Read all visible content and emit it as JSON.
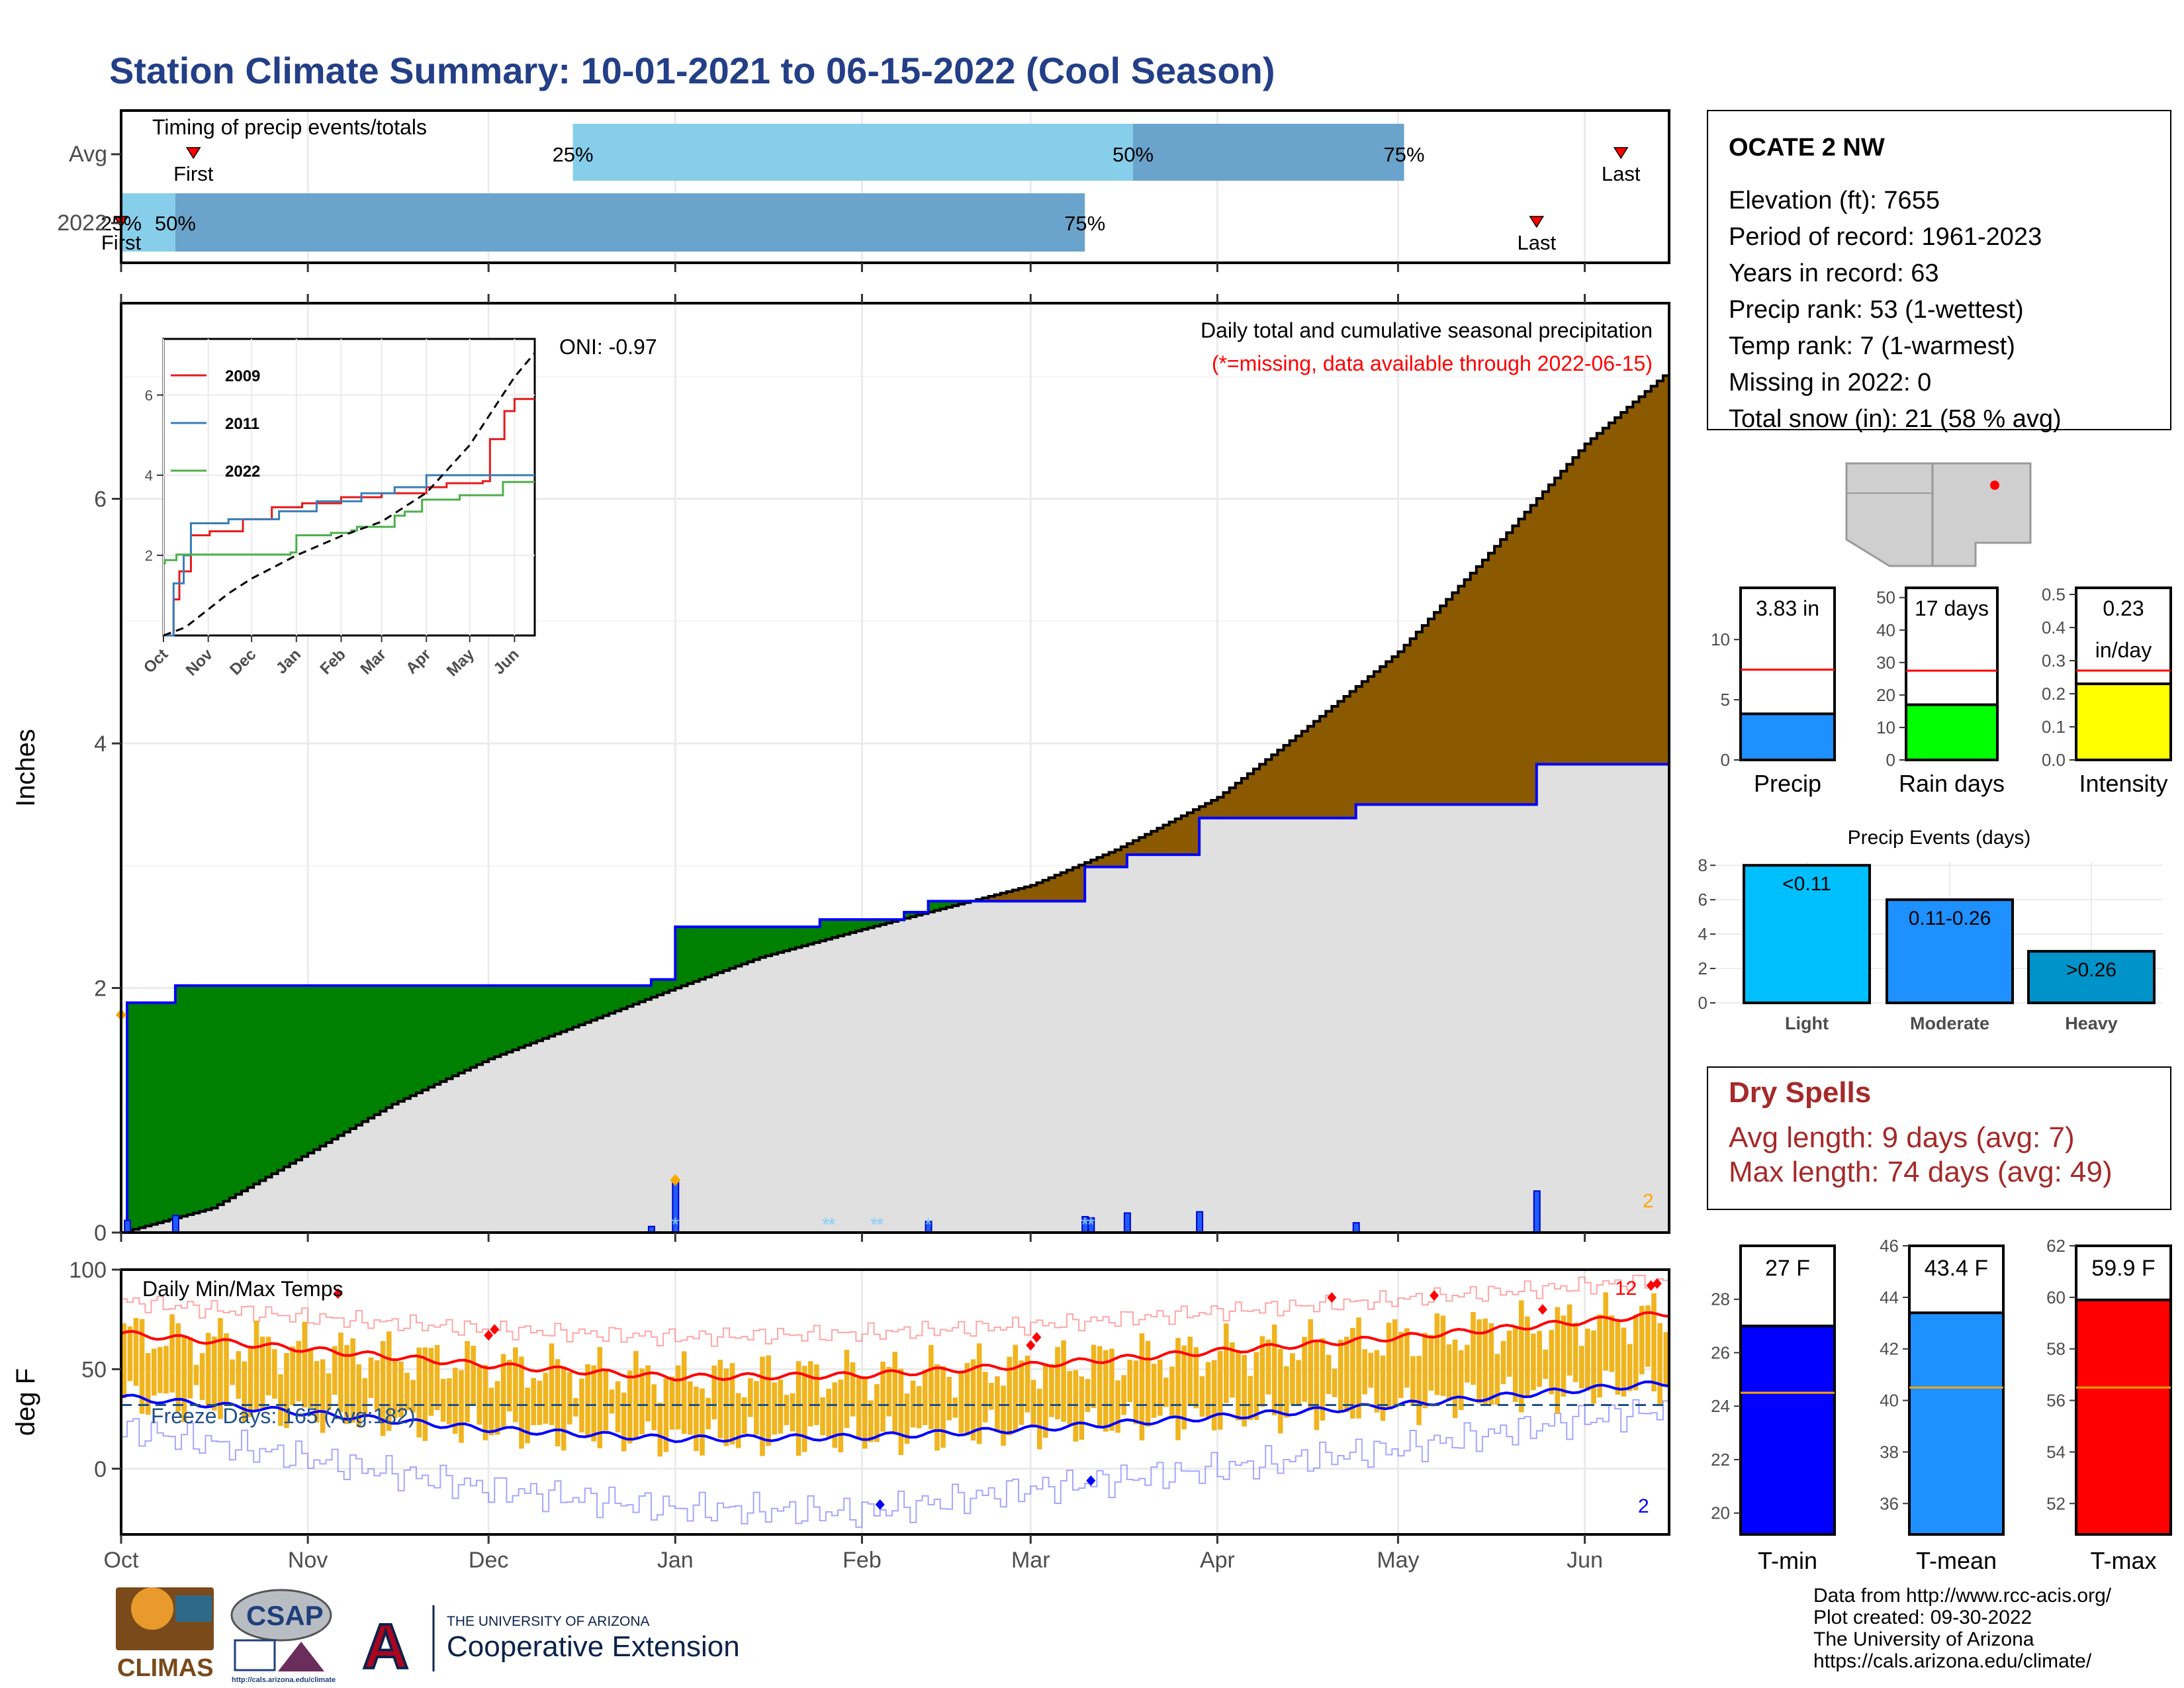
{
  "title": "Station Climate Summary: 10-01-2021 to 06-15-2022 (Cool Season)",
  "colors": {
    "title": "#233f87",
    "wet_fill": "#008000",
    "dry_fill": "#8b5a00",
    "avg_fill": "#e0e0e0",
    "precip_light": "#00bfff",
    "precip_moderate": "#1e90ff",
    "precip_heavy": "#0093c9",
    "rain_days": "#00ff00",
    "intensity": "#ffff00",
    "tmin": "#0000ff",
    "tmean": "#1e90ff",
    "tmax": "#ff0000",
    "temp_bar": "#f0b41e",
    "dry_spell_text": "#a52a2a",
    "timing_light": "#87ceeb",
    "timing_dark": "#6aa3cc"
  },
  "timing": {
    "title": "Timing of precip events/totals",
    "row_labels": [
      "Avg",
      "2022"
    ],
    "avg_labels": [
      "First",
      "25%",
      "50%",
      "75%",
      "Last"
    ],
    "y2022_labels": [
      "First",
      "25%",
      "50%",
      "75%",
      "Last"
    ],
    "chart_data": {
      "type": "bar",
      "categories": [
        "Avg",
        "2022"
      ],
      "series": [
        {
          "name": "Avg",
          "first": "2021-10-13",
          "p25": "2021-12-15",
          "p50": "2022-03-18",
          "p75": "2022-05-02",
          "last": "2022-06-07"
        },
        {
          "name": "2022",
          "first": "2021-10-01",
          "p25": "2021-10-01",
          "p50": "2021-10-10",
          "p75": "2022-03-10",
          "last": "2022-05-24"
        }
      ]
    }
  },
  "main": {
    "ylabel": "Inches",
    "header_line1": "Daily total and cumulative seasonal precipitation",
    "header_line2": "(*=missing, data available through 2022-06-15)",
    "oni": "ONI: -0.97",
    "corner_count": "2",
    "yticks": [
      "0",
      "2",
      "4",
      "6"
    ],
    "months": [
      "Oct",
      "Nov",
      "Dec",
      "Jan",
      "Feb",
      "Mar",
      "Apr",
      "May",
      "Jun"
    ],
    "chart_data": {
      "type": "area",
      "x_start": "2021-10-01",
      "x_end": "2022-06-15",
      "ylim": [
        0,
        7.6
      ],
      "series": [
        {
          "name": "Observed cumulative 2022",
          "points": [
            [
              "2021-10-01",
              0
            ],
            [
              "2021-10-02",
              1.88
            ],
            [
              "2021-10-10",
              2.02
            ],
            [
              "2021-12-28",
              2.07
            ],
            [
              "2022-01-01",
              2.5
            ],
            [
              "2022-01-25",
              2.56
            ],
            [
              "2022-02-08",
              2.62
            ],
            [
              "2022-02-12",
              2.71
            ],
            [
              "2022-03-10",
              2.99
            ],
            [
              "2022-03-17",
              3.09
            ],
            [
              "2022-03-29",
              3.39
            ],
            [
              "2022-04-24",
              3.5
            ],
            [
              "2022-05-24",
              3.83
            ],
            [
              "2022-06-15",
              3.83
            ]
          ]
        },
        {
          "name": "Average cumulative",
          "points": [
            [
              "2021-10-01",
              0
            ],
            [
              "2021-10-16",
              0.2
            ],
            [
              "2021-11-01",
              0.65
            ],
            [
              "2021-11-15",
              1.05
            ],
            [
              "2021-12-01",
              1.42
            ],
            [
              "2021-12-15",
              1.68
            ],
            [
              "2022-01-01",
              2.0
            ],
            [
              "2022-01-15",
              2.25
            ],
            [
              "2022-02-01",
              2.48
            ],
            [
              "2022-02-15",
              2.66
            ],
            [
              "2022-03-01",
              2.84
            ],
            [
              "2022-03-15",
              3.13
            ],
            [
              "2022-04-01",
              3.56
            ],
            [
              "2022-04-15",
              4.1
            ],
            [
              "2022-05-01",
              4.75
            ],
            [
              "2022-05-15",
              5.5
            ],
            [
              "2022-06-01",
              6.45
            ],
            [
              "2022-06-15",
              7.05
            ]
          ]
        }
      ],
      "daily_precip": [
        [
          "2021-10-02",
          0.1
        ],
        [
          "2021-10-10",
          0.14
        ],
        [
          "2021-12-28",
          0.05
        ],
        [
          "2022-01-01",
          0.43
        ],
        [
          "2022-02-12",
          0.09
        ],
        [
          "2022-03-10",
          0.13
        ],
        [
          "2022-03-11",
          0.12
        ],
        [
          "2022-03-17",
          0.16
        ],
        [
          "2022-03-29",
          0.17
        ],
        [
          "2022-04-24",
          0.08
        ],
        [
          "2022-05-24",
          0.34
        ]
      ],
      "missing_markers": [
        "2022-01-01",
        "2022-01-26",
        "2022-01-27",
        "2022-02-03",
        "2022-02-04",
        "2022-02-12",
        "2022-03-10",
        "2022-03-11"
      ]
    }
  },
  "inset": {
    "legend": [
      "2009",
      "2011",
      "2022"
    ],
    "yticks": [
      "2",
      "4",
      "6"
    ],
    "months": [
      "Oct",
      "Nov",
      "Dec",
      "Jan",
      "Feb",
      "Mar",
      "Apr",
      "May",
      "Jun"
    ],
    "chart_data": {
      "type": "line",
      "ylim": [
        0,
        7.4
      ],
      "series": [
        {
          "name": "2009",
          "points": [
            [
              "2021-10-01",
              0
            ],
            [
              "2021-10-08",
              0.9
            ],
            [
              "2021-10-12",
              1.6
            ],
            [
              "2021-10-20",
              2.5
            ],
            [
              "2021-11-02",
              2.6
            ],
            [
              "2021-11-25",
              2.9
            ],
            [
              "2021-12-15",
              3.2
            ],
            [
              "2022-01-05",
              3.3
            ],
            [
              "2022-02-01",
              3.45
            ],
            [
              "2022-03-01",
              3.55
            ],
            [
              "2022-04-01",
              3.7
            ],
            [
              "2022-04-15",
              3.8
            ],
            [
              "2022-05-10",
              3.85
            ],
            [
              "2022-05-15",
              4.9
            ],
            [
              "2022-05-25",
              5.6
            ],
            [
              "2022-06-01",
              5.9
            ],
            [
              "2022-06-15",
              5.9
            ]
          ]
        },
        {
          "name": "2011",
          "points": [
            [
              "2021-10-01",
              0
            ],
            [
              "2021-10-08",
              1.3
            ],
            [
              "2021-10-15",
              2.0
            ],
            [
              "2021-10-20",
              2.8
            ],
            [
              "2021-11-15",
              2.9
            ],
            [
              "2021-12-20",
              3.1
            ],
            [
              "2022-01-15",
              3.35
            ],
            [
              "2022-02-15",
              3.55
            ],
            [
              "2022-03-10",
              3.7
            ],
            [
              "2022-04-01",
              4.0
            ],
            [
              "2022-06-15",
              4.0
            ]
          ]
        },
        {
          "name": "2022",
          "points": [
            [
              "2021-10-01",
              1.8
            ],
            [
              "2021-10-02",
              1.88
            ],
            [
              "2021-10-10",
              2.02
            ],
            [
              "2021-12-28",
              2.07
            ],
            [
              "2022-01-01",
              2.5
            ],
            [
              "2022-01-25",
              2.56
            ],
            [
              "2022-02-08",
              2.62
            ],
            [
              "2022-02-12",
              2.71
            ],
            [
              "2022-03-10",
              2.99
            ],
            [
              "2022-03-17",
              3.09
            ],
            [
              "2022-03-29",
              3.39
            ],
            [
              "2022-04-24",
              3.5
            ],
            [
              "2022-05-24",
              3.83
            ],
            [
              "2022-06-15",
              3.83
            ]
          ]
        },
        {
          "name": "Average",
          "points": [
            [
              "2021-10-01",
              0
            ],
            [
              "2021-10-16",
              0.2
            ],
            [
              "2021-11-01",
              0.65
            ],
            [
              "2021-11-15",
              1.05
            ],
            [
              "2021-12-01",
              1.42
            ],
            [
              "2021-12-15",
              1.68
            ],
            [
              "2022-01-01",
              2.0
            ],
            [
              "2022-02-01",
              2.48
            ],
            [
              "2022-03-01",
              2.84
            ],
            [
              "2022-04-01",
              3.56
            ],
            [
              "2022-05-01",
              4.75
            ],
            [
              "2022-06-01",
              6.45
            ],
            [
              "2022-06-15",
              7.05
            ]
          ]
        }
      ]
    }
  },
  "temp": {
    "ylabel": "deg F",
    "title": "Daily Min/Max Temps",
    "freeze": "Freeze Days: 165 (Avg:182)",
    "yticks": [
      "0",
      "50",
      "100"
    ],
    "months": [
      "Oct",
      "Nov",
      "Dec",
      "Jan",
      "Feb",
      "Mar",
      "Apr",
      "May",
      "Jun"
    ],
    "count_high": "12",
    "count_low": "2",
    "chart_data": {
      "type": "line",
      "ylim": [
        -33,
        100
      ],
      "freeze_line": 32,
      "series": [
        {
          "name": "Avg max",
          "points": [
            [
              "2021-10-01",
              68
            ],
            [
              "2021-11-01",
              60
            ],
            [
              "2021-12-01",
              52
            ],
            [
              "2022-01-01",
              46
            ],
            [
              "2022-02-01",
              47
            ],
            [
              "2022-03-01",
              52
            ],
            [
              "2022-04-01",
              59
            ],
            [
              "2022-05-01",
              66
            ],
            [
              "2022-06-01",
              74
            ],
            [
              "2022-06-15",
              78
            ]
          ]
        },
        {
          "name": "Avg min",
          "points": [
            [
              "2021-10-01",
              36
            ],
            [
              "2021-11-01",
              28
            ],
            [
              "2021-12-01",
              20
            ],
            [
              "2022-01-01",
              15
            ],
            [
              "2022-02-01",
              16
            ],
            [
              "2022-03-01",
              20
            ],
            [
              "2022-04-01",
              26
            ],
            [
              "2022-05-01",
              32
            ],
            [
              "2022-06-01",
              40
            ],
            [
              "2022-06-15",
              43
            ]
          ]
        },
        {
          "name": "Record high",
          "points": [
            [
              "2021-10-01",
              84
            ],
            [
              "2021-11-01",
              76
            ],
            [
              "2021-12-01",
              70
            ],
            [
              "2022-01-01",
              66
            ],
            [
              "2022-02-01",
              68
            ],
            [
              "2022-03-01",
              72
            ],
            [
              "2022-04-01",
              79
            ],
            [
              "2022-05-01",
              85
            ],
            [
              "2022-06-01",
              92
            ],
            [
              "2022-06-15",
              95
            ]
          ]
        },
        {
          "name": "Record low",
          "points": [
            [
              "2021-10-01",
              20
            ],
            [
              "2021-11-01",
              5
            ],
            [
              "2021-12-01",
              -10
            ],
            [
              "2022-01-01",
              -20
            ],
            [
              "2022-02-01",
              -22
            ],
            [
              "2022-03-01",
              -10
            ],
            [
              "2022-04-01",
              0
            ],
            [
              "2022-05-01",
              10
            ],
            [
              "2022-06-01",
              25
            ],
            [
              "2022-06-15",
              30
            ]
          ]
        }
      ],
      "record_high_marks": [
        [
          "2021-11-06",
          88
        ],
        [
          "2021-12-01",
          67
        ],
        [
          "2021-12-02",
          70
        ],
        [
          "2022-03-01",
          62
        ],
        [
          "2022-03-02",
          66
        ],
        [
          "2022-04-20",
          86
        ],
        [
          "2022-05-07",
          87
        ],
        [
          "2022-05-25",
          80
        ],
        [
          "2022-06-12",
          92
        ],
        [
          "2022-06-13",
          93
        ]
      ],
      "record_low_marks": [
        [
          "2022-02-04",
          -18
        ],
        [
          "2022-03-11",
          -6
        ]
      ]
    }
  },
  "station": {
    "name": "OCATE 2 NW",
    "lines": [
      "Elevation (ft): 7655",
      "Period of record: 1961-2023",
      "Years in record: 63",
      "Precip rank: 53 (1-wettest)",
      "Temp rank: 7 (1-warmest)",
      "Missing in 2022: 0",
      "Total snow (in): 21 (58 % avg)"
    ]
  },
  "mini_bars": [
    {
      "label": "Precip",
      "value_text": "3.83 in",
      "value": 3.83,
      "avg": 7.5,
      "ylim": [
        0,
        14.3
      ],
      "yticks": [
        "0",
        "5",
        "10"
      ],
      "tick_values": [
        0,
        5,
        10
      ]
    },
    {
      "label": "Rain days",
      "value_text": "17 days",
      "value": 17,
      "avg": 27.5,
      "ylim": [
        0,
        53
      ],
      "yticks": [
        "0",
        "10",
        "20",
        "30",
        "40",
        "50"
      ],
      "tick_values": [
        0,
        10,
        20,
        30,
        40,
        50
      ]
    },
    {
      "label": "Intensity",
      "value_text": "0.23",
      "value_text2": "in/day",
      "value": 0.23,
      "avg": 0.27,
      "ylim": [
        0,
        0.52
      ],
      "yticks": [
        "0.0",
        "0.1",
        "0.2",
        "0.3",
        "0.4",
        "0.5"
      ],
      "tick_values": [
        0,
        0.1,
        0.2,
        0.3,
        0.4,
        0.5
      ]
    }
  ],
  "events": {
    "title": "Precip Events (days)",
    "yticks": [
      "0",
      "2",
      "4",
      "6",
      "8"
    ],
    "chart_data": {
      "type": "bar",
      "categories": [
        "Light",
        "Moderate",
        "Heavy"
      ],
      "values": [
        8,
        6,
        3
      ],
      "bar_labels": [
        "<0.11",
        "0.11-0.26",
        ">0.26"
      ],
      "ylim": [
        0,
        8.2
      ]
    }
  },
  "dry_spells": {
    "title": "Dry Spells",
    "avg_line": "Avg length: 9 days (avg: 7)",
    "max_line": "Max length: 74 days (avg: 49)"
  },
  "temp_bars": [
    {
      "label": "T-min",
      "value_text": "27 F",
      "value": 27,
      "avg": 24.5,
      "ylim": [
        19.2,
        30
      ],
      "yticks": [
        "20",
        "22",
        "24",
        "26",
        "28"
      ],
      "tick_values": [
        20,
        22,
        24,
        26,
        28
      ]
    },
    {
      "label": "T-mean",
      "value_text": "43.4 F",
      "value": 43.4,
      "avg": 40.5,
      "ylim": [
        34.8,
        46
      ],
      "yticks": [
        "36",
        "38",
        "40",
        "42",
        "44",
        "46"
      ],
      "tick_values": [
        36,
        38,
        40,
        42,
        44,
        46
      ]
    },
    {
      "label": "T-max",
      "value_text": "59.9 F",
      "value": 59.9,
      "avg": 56.5,
      "ylim": [
        50.8,
        62
      ],
      "yticks": [
        "52",
        "54",
        "56",
        "58",
        "60",
        "62"
      ],
      "tick_values": [
        52,
        54,
        56,
        58,
        60,
        62
      ]
    }
  ],
  "logos": {
    "climas": "CLIMAS",
    "csap": "CSAP",
    "csap_url": "http://cals.arizona.edu/climate",
    "ua_small": "THE UNIVERSITY OF ARIZONA",
    "ua_big": "Cooperative Extension"
  },
  "credits": [
    "Data from http://www.rcc-acis.org/",
    "Plot created: 09-30-2022",
    "The University of Arizona",
    "https://cals.arizona.edu/climate/"
  ]
}
